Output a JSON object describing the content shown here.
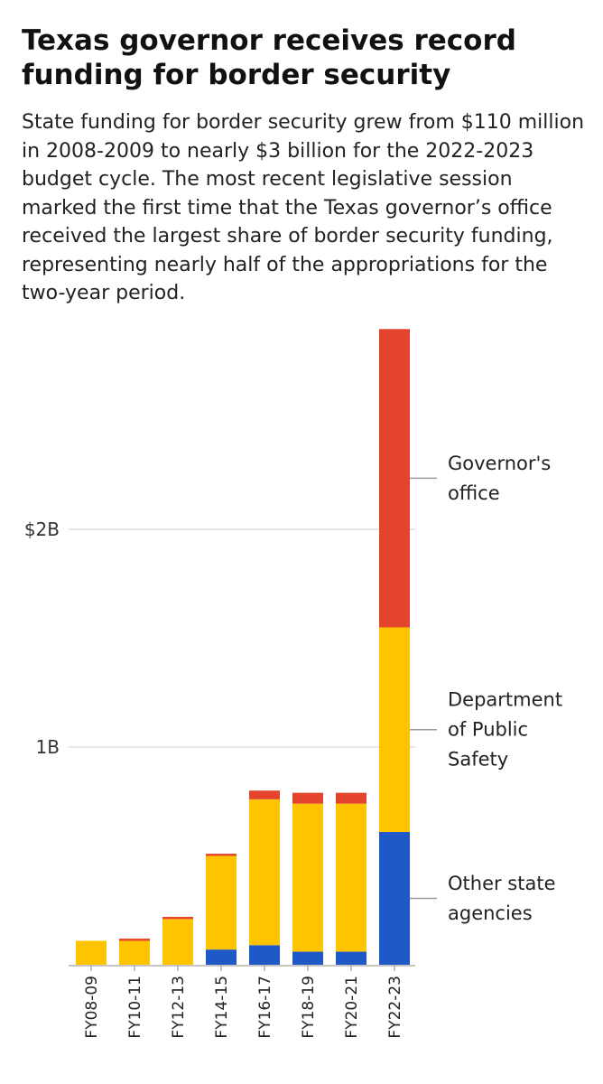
{
  "title": "Texas governor receives record funding for border security",
  "subtitle": "State funding for border security grew from $110 million in 2008-2009 to nearly $3 billion for the 2022-2023 budget cycle. The most recent legislative session marked the first time that the Texas governor’s office received the largest share of border security funding, representing nearly half of the appropriations for the two-year period.",
  "chart_data": {
    "type": "bar",
    "stacked": true,
    "categories": [
      "FY08-09",
      "FY10-11",
      "FY12-13",
      "FY14-15",
      "FY16-17",
      "FY18-19",
      "FY20-21",
      "FY22-23"
    ],
    "series": [
      {
        "name": "Other state agencies",
        "color": "#1f58c7",
        "values": [
          0,
          0,
          0,
          0.07,
          0.09,
          0.06,
          0.06,
          0.61
        ]
      },
      {
        "name": "Department of Public Safety",
        "color": "#ffc400",
        "values": [
          0.11,
          0.11,
          0.21,
          0.43,
          0.67,
          0.68,
          0.68,
          0.94
        ]
      },
      {
        "name": "Governor's office",
        "color": "#e4432d",
        "values": [
          0,
          0.01,
          0.01,
          0.01,
          0.04,
          0.05,
          0.05,
          1.37
        ]
      }
    ],
    "yticks": [
      {
        "value": 1,
        "label": "1B"
      },
      {
        "value": 2,
        "label": "$2B"
      }
    ],
    "ylim": [
      0,
      2.95
    ],
    "legend_labels": [
      {
        "series": "Governor's office",
        "lines": [
          "Governor's",
          "office"
        ]
      },
      {
        "series": "Department of Public Safety",
        "lines": [
          "Department",
          "of Public",
          "Safety"
        ]
      },
      {
        "series": "Other state agencies",
        "lines": [
          "Other state",
          "agencies"
        ]
      }
    ],
    "legend_placement": "right, next to last bar",
    "grid": true
  }
}
